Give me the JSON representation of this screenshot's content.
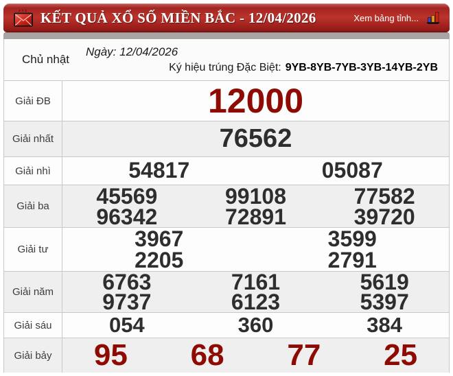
{
  "header": {
    "title": "KẾT QUẢ XỔ SỐ MIỀN BẮC - 12/04/2026",
    "view_link_label": "Xem bảng tỉnh...",
    "icons": [
      "envelope-icon",
      "bar-chart-icon"
    ],
    "colors": {
      "bar_main": "#b42f28",
      "bar_dark": "#851713",
      "strip": "#a9a5a5"
    }
  },
  "info": {
    "weekday": "Chủ nhật",
    "date_line": "Ngày: 12/04/2026",
    "special_symbol_label": "Ký hiệu trúng Đặc Biệt:",
    "special_symbol_value": "9YB-8YB-7YB-3YB-14YB-2YB"
  },
  "prizes": [
    {
      "key": "db",
      "label": "Giải ĐB",
      "cols": 1,
      "emphasis": "red",
      "numbers": [
        "12000"
      ]
    },
    {
      "key": "nhat",
      "label": "Giải nhất",
      "cols": 1,
      "emphasis": "dark",
      "numbers": [
        "76562"
      ]
    },
    {
      "key": "nhi",
      "label": "Giải nhì",
      "cols": 2,
      "emphasis": "dark",
      "numbers": [
        "54817",
        "05087"
      ]
    },
    {
      "key": "ba",
      "label": "Giải ba",
      "cols": 3,
      "emphasis": "dark",
      "numbers": [
        "45569",
        "99108",
        "77582",
        "96342",
        "72891",
        "39720"
      ]
    },
    {
      "key": "tu",
      "label": "Giải tư",
      "cols": 2,
      "emphasis": "dark",
      "numbers": [
        "3967",
        "3599",
        "2205",
        "2791"
      ]
    },
    {
      "key": "nam",
      "label": "Giải năm",
      "cols": 3,
      "emphasis": "dark",
      "numbers": [
        "6763",
        "7161",
        "5619",
        "9737",
        "6123",
        "5397"
      ]
    },
    {
      "key": "sau",
      "label": "Giải sáu",
      "cols": 3,
      "emphasis": "dark",
      "numbers": [
        "054",
        "360",
        "384"
      ]
    },
    {
      "key": "bay",
      "label": "Giải bảy",
      "cols": 4,
      "emphasis": "red",
      "numbers": [
        "95",
        "68",
        "77",
        "25"
      ]
    }
  ],
  "colors": {
    "special_number": "#8e0b04",
    "normal_number": "#2e2e2e",
    "row_shade": "#efefef",
    "border": "#c8c8c8"
  }
}
